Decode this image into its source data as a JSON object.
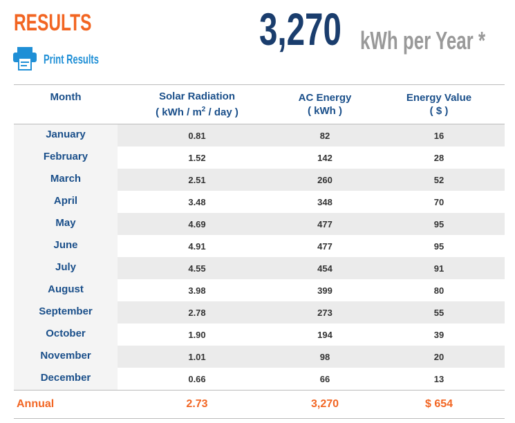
{
  "header": {
    "title": "RESULTS",
    "print_label": "Print Results",
    "total": "3,270",
    "total_unit": "kWh per Year *"
  },
  "table": {
    "columns": [
      {
        "title": "Month"
      },
      {
        "title": "Solar Radiation",
        "unit_prefix": "( kWh / m",
        "unit_sup": "2",
        "unit_suffix": " / day )"
      },
      {
        "title": "AC Energy",
        "unit": "( kWh )"
      },
      {
        "title": "Energy Value",
        "unit": "( $ )"
      }
    ],
    "rows": [
      [
        "January",
        "0.81",
        "82",
        "16"
      ],
      [
        "February",
        "1.52",
        "142",
        "28"
      ],
      [
        "March",
        "2.51",
        "260",
        "52"
      ],
      [
        "April",
        "3.48",
        "348",
        "70"
      ],
      [
        "May",
        "4.69",
        "477",
        "95"
      ],
      [
        "June",
        "4.91",
        "477",
        "95"
      ],
      [
        "July",
        "4.55",
        "454",
        "91"
      ],
      [
        "August",
        "3.98",
        "399",
        "80"
      ],
      [
        "September",
        "2.78",
        "273",
        "55"
      ],
      [
        "October",
        "1.90",
        "194",
        "39"
      ],
      [
        "November",
        "1.01",
        "98",
        "20"
      ],
      [
        "December",
        "0.66",
        "66",
        "13"
      ]
    ],
    "annual": [
      "Annual",
      "2.73",
      "3,270",
      "$ 654"
    ]
  }
}
